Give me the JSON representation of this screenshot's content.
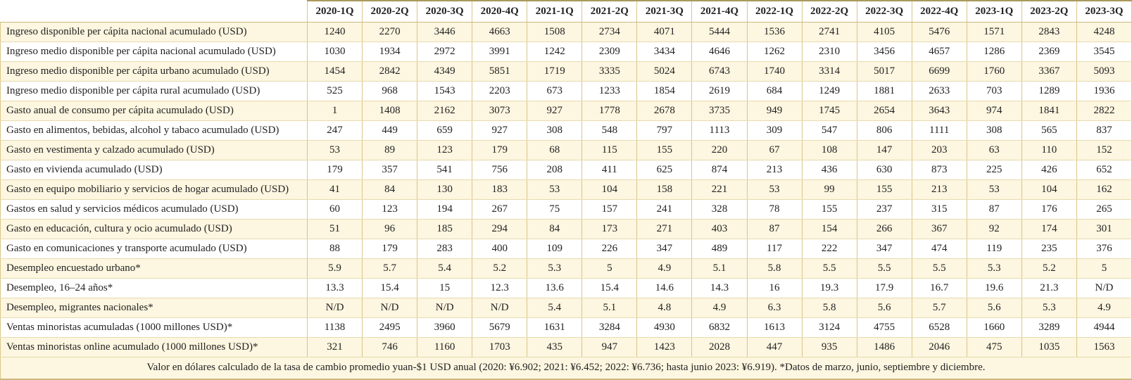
{
  "chart_data": {
    "type": "table",
    "title": "",
    "columns": [
      "2020-1Q",
      "2020-2Q",
      "2020-3Q",
      "2020-4Q",
      "2021-1Q",
      "2021-2Q",
      "2021-3Q",
      "2021-4Q",
      "2022-1Q",
      "2022-2Q",
      "2022-3Q",
      "2022-4Q",
      "2023-1Q",
      "2023-2Q",
      "2023-3Q"
    ],
    "rows": [
      {
        "label": "Ingreso disponible per cápita nacional acumulado (USD)",
        "values": [
          1240,
          2270,
          3446,
          4663,
          1508,
          2734,
          4071,
          5444,
          1536,
          2741,
          4105,
          5476,
          1571,
          2843,
          4248
        ]
      },
      {
        "label": "Ingreso medio disponible per cápita nacional acumulado (USD)",
        "values": [
          1030,
          1934,
          2972,
          3991,
          1242,
          2309,
          3434,
          4646,
          1262,
          2310,
          3456,
          4657,
          1286,
          2369,
          3545
        ]
      },
      {
        "label": "Ingreso medio disponible per cápita urbano acumulado (USD)",
        "values": [
          1454,
          2842,
          4349,
          5851,
          1719,
          3335,
          5024,
          6743,
          1740,
          3314,
          5017,
          6699,
          1760,
          3367,
          5093
        ]
      },
      {
        "label": "Ingreso medio disponible per cápita rural acumulado (USD)",
        "values": [
          525,
          968,
          1543,
          2203,
          673,
          1233,
          1854,
          2619,
          684,
          1249,
          1881,
          2633,
          703,
          1289,
          1936
        ]
      },
      {
        "label": "Gasto anual de consumo per cápita acumulado (USD)",
        "values": [
          1,
          1408,
          2162,
          3073,
          927,
          1778,
          2678,
          3735,
          949,
          1745,
          2654,
          3643,
          974,
          1841,
          2822
        ]
      },
      {
        "label": "Gasto en alimentos, bebidas, alcohol y tabaco acumulado (USD)",
        "values": [
          247,
          449,
          659,
          927,
          308,
          548,
          797,
          1113,
          309,
          547,
          806,
          1111,
          308,
          565,
          837
        ]
      },
      {
        "label": "Gasto en vestimenta y calzado acumulado (USD)",
        "values": [
          53,
          89,
          123,
          179,
          68,
          115,
          155,
          220,
          67,
          108,
          147,
          203,
          63,
          110,
          152
        ]
      },
      {
        "label": "Gasto en vivienda acumulado (USD)",
        "values": [
          179,
          357,
          541,
          756,
          208,
          411,
          625,
          874,
          213,
          436,
          630,
          873,
          225,
          426,
          652
        ]
      },
      {
        "label": "Gasto en equipo mobiliario y servicios de hogar acumulado (USD)",
        "values": [
          41,
          84,
          130,
          183,
          53,
          104,
          158,
          221,
          53,
          99,
          155,
          213,
          53,
          104,
          162
        ]
      },
      {
        "label": "Gastos en salud y servicios médicos acumulado (USD)",
        "values": [
          60,
          123,
          194,
          267,
          75,
          157,
          241,
          328,
          78,
          155,
          237,
          315,
          87,
          176,
          265
        ]
      },
      {
        "label": "Gasto en educación, cultura y ocio acumulado (USD)",
        "values": [
          51,
          96,
          185,
          294,
          84,
          173,
          271,
          403,
          87,
          154,
          266,
          367,
          92,
          174,
          301
        ]
      },
      {
        "label": "Gasto en comunicaciones y transporte acumulado (USD)",
        "values": [
          88,
          179,
          283,
          400,
          109,
          226,
          347,
          489,
          117,
          222,
          347,
          474,
          119,
          235,
          376
        ]
      },
      {
        "label": "Desempleo encuestado urbano*",
        "values": [
          5.9,
          5.7,
          5.4,
          5.2,
          5.3,
          5,
          4.9,
          5.1,
          5.8,
          5.5,
          5.5,
          5.5,
          5.3,
          5.2,
          5
        ]
      },
      {
        "label": "Desempleo, 16–24 años*",
        "values": [
          13.3,
          15.4,
          15,
          12.3,
          13.6,
          15.4,
          14.6,
          14.3,
          16,
          19.3,
          17.9,
          16.7,
          19.6,
          21.3,
          "N/D"
        ]
      },
      {
        "label": "Desempleo, migrantes nacionales*",
        "values": [
          "N/D",
          "N/D",
          "N/D",
          "N/D",
          5.4,
          5.1,
          4.8,
          4.9,
          6.3,
          5.8,
          5.6,
          5.7,
          5.6,
          5.3,
          4.9
        ]
      },
      {
        "label": "Ventas minoristas acumuladas (1000 millones USD)*",
        "values": [
          1138,
          2495,
          3960,
          5679,
          1631,
          3284,
          4930,
          6832,
          1613,
          3124,
          4755,
          6528,
          1660,
          3289,
          4944
        ]
      },
      {
        "label": "Ventas minoristas online acumulado (1000 millones USD)*",
        "values": [
          321,
          746,
          1160,
          1703,
          435,
          947,
          1423,
          2028,
          447,
          935,
          1486,
          2046,
          475,
          1035,
          1563
        ]
      }
    ],
    "footnote": "Valor en dólares calculado de la tasa de cambio promedio yuan-$1 USD anual (2020: ¥6.902; 2021: ¥6.452; 2022: ¥6.736; hasta junio 2023: ¥6.919). *Datos de marzo, junio, septiembre y diciembre.",
    "layout": {
      "grid": true,
      "striped": true,
      "legend_position": "none"
    }
  },
  "colors": {
    "stripe_bg": "#fdf6e0",
    "row_bg": "#ffffff",
    "border": "#d9c689",
    "top_rule": "#a99a5f",
    "text": "#222222"
  }
}
